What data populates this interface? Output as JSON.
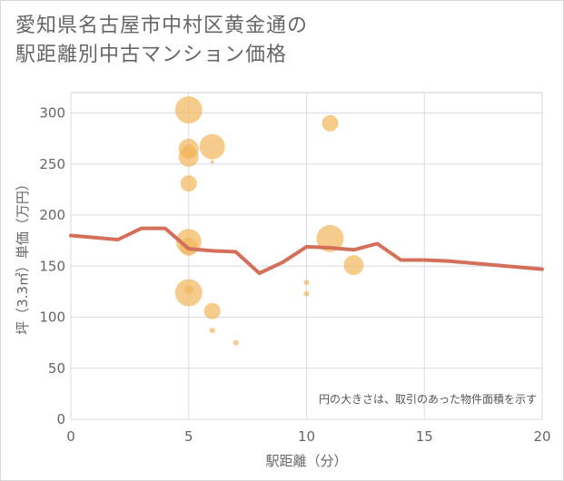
{
  "title": {
    "line1": "愛知県名古屋市中村区黄金通の",
    "line2": "駅距離別中古マンション価格"
  },
  "chart_data": {
    "type": "scatter",
    "title": "愛知県名古屋市中村区黄金通の駅距離別中古マンション価格",
    "xlabel": "駅距離（分）",
    "ylabel": "坪（3.3㎡）単価（万円）",
    "xlim": [
      0,
      20
    ],
    "ylim": [
      0,
      320
    ],
    "xticks": [
      0,
      5,
      10,
      15,
      20
    ],
    "yticks": [
      0,
      50,
      100,
      150,
      200,
      250,
      300
    ],
    "grid": true,
    "note": "円の大きさは、取引のあった物件面積を示す",
    "colors": {
      "bubble": "#f2b75c",
      "trend": "#d4705a"
    },
    "series": [
      {
        "name": "取引",
        "kind": "bubble",
        "points": [
          {
            "x": 5,
            "y": 303,
            "size": 15
          },
          {
            "x": 5,
            "y": 265,
            "size": 11
          },
          {
            "x": 5,
            "y": 263,
            "size": 7
          },
          {
            "x": 5,
            "y": 257,
            "size": 11
          },
          {
            "x": 5,
            "y": 231,
            "size": 9
          },
          {
            "x": 6,
            "y": 267,
            "size": 14
          },
          {
            "x": 6,
            "y": 252,
            "size": 2
          },
          {
            "x": 5,
            "y": 174,
            "size": 14
          },
          {
            "x": 5,
            "y": 169,
            "size": 10
          },
          {
            "x": 5,
            "y": 124,
            "size": 15
          },
          {
            "x": 5,
            "y": 127,
            "size": 5
          },
          {
            "x": 6,
            "y": 106,
            "size": 9
          },
          {
            "x": 6,
            "y": 87,
            "size": 3
          },
          {
            "x": 7,
            "y": 75,
            "size": 3
          },
          {
            "x": 10,
            "y": 134,
            "size": 3
          },
          {
            "x": 10,
            "y": 123,
            "size": 3
          },
          {
            "x": 11,
            "y": 290,
            "size": 9
          },
          {
            "x": 11,
            "y": 177,
            "size": 15
          },
          {
            "x": 12,
            "y": 151,
            "size": 11
          }
        ]
      },
      {
        "name": "平均",
        "kind": "line",
        "x": [
          0,
          1,
          2,
          3,
          4,
          5,
          6,
          7,
          8,
          9,
          10,
          11,
          12,
          13,
          14,
          15,
          16,
          17,
          18,
          19,
          20
        ],
        "y": [
          180,
          178,
          176,
          187,
          187,
          167,
          165,
          164,
          143,
          154,
          169,
          168,
          166,
          172,
          156,
          156,
          155,
          153,
          151,
          149,
          147
        ]
      }
    ]
  }
}
